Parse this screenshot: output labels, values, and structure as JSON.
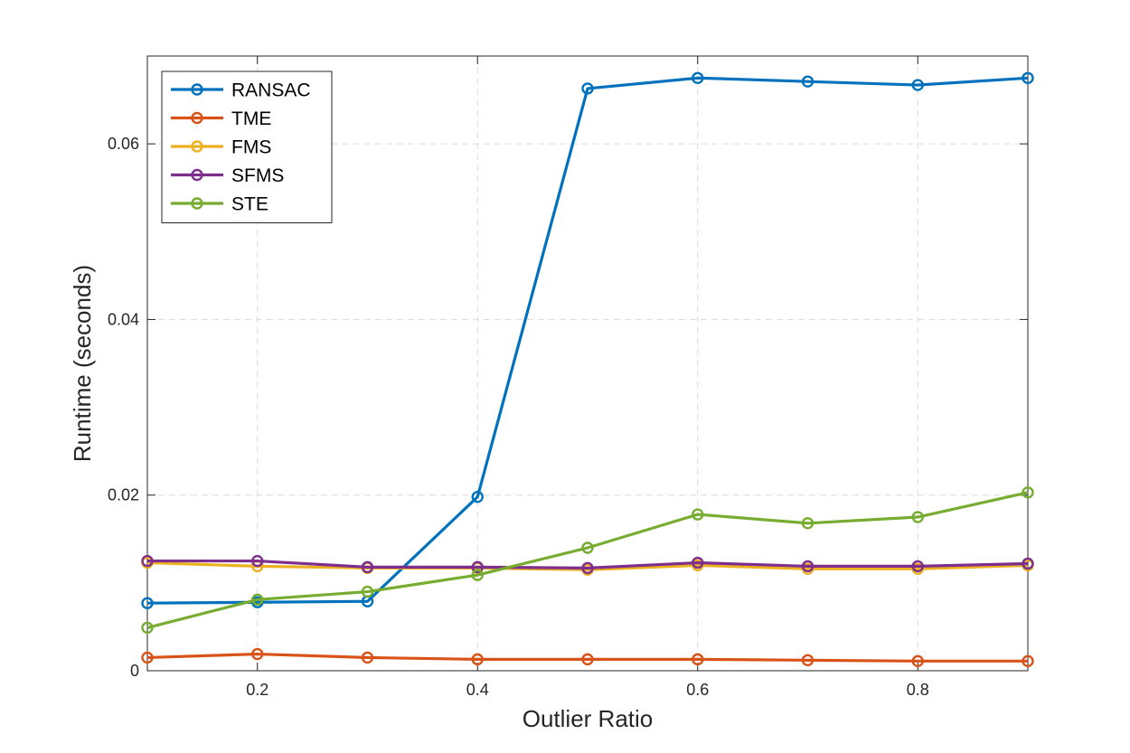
{
  "chart_data": {
    "type": "line",
    "title": "",
    "xlabel": "Outlier Ratio",
    "ylabel": "Runtime (seconds)",
    "xlim": [
      0.1,
      0.9
    ],
    "ylim": [
      0,
      0.07
    ],
    "xticks": [
      0.2,
      0.4,
      0.6,
      0.8
    ],
    "xtick_labels": [
      "0.2",
      "0.4",
      "0.6",
      "0.8"
    ],
    "yticks": [
      0,
      0.02,
      0.04,
      0.06
    ],
    "ytick_labels": [
      "0",
      "0.02",
      "0.04",
      "0.06"
    ],
    "grid": true,
    "legend_position": "top-left",
    "x": [
      0.1,
      0.2,
      0.3,
      0.4,
      0.5,
      0.6,
      0.7,
      0.8,
      0.9
    ],
    "series": [
      {
        "name": "RANSAC",
        "color": "#0072BD",
        "values": [
          0.0077,
          0.0078,
          0.0079,
          0.0198,
          0.0663,
          0.0675,
          0.0671,
          0.0667,
          0.0675
        ]
      },
      {
        "name": "TME",
        "color": "#D95319",
        "values": [
          0.0015,
          0.0019,
          0.0015,
          0.0013,
          0.0013,
          0.0013,
          0.0012,
          0.0011,
          0.0011
        ]
      },
      {
        "name": "FMS",
        "color": "#EDB120",
        "values": [
          0.0123,
          0.0119,
          0.0117,
          0.0117,
          0.0115,
          0.012,
          0.0116,
          0.0116,
          0.012
        ]
      },
      {
        "name": "SFMS",
        "color": "#7E2F8E",
        "values": [
          0.0125,
          0.0125,
          0.0118,
          0.0118,
          0.0117,
          0.0123,
          0.0119,
          0.0119,
          0.0122
        ]
      },
      {
        "name": "STE",
        "color": "#77AC30",
        "values": [
          0.0049,
          0.0081,
          0.009,
          0.0109,
          0.014,
          0.0178,
          0.0168,
          0.0175,
          0.0203
        ]
      }
    ]
  }
}
